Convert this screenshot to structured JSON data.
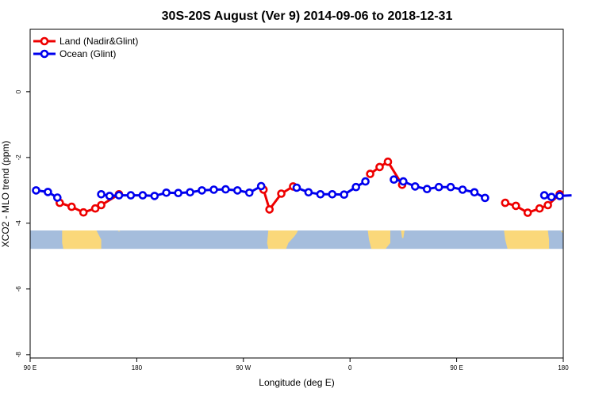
{
  "chart_data": {
    "type": "line",
    "title": "30S-20S August (Ver 9)   2014-09-06 to 2018-12-31",
    "xlabel": "Longitude (deg E)",
    "ylabel": "XCO2 - MLO trend (ppm)",
    "xlim": [
      90,
      540
    ],
    "ylim": [
      -8.1,
      1.9
    ],
    "x_ticks": [
      {
        "value": 90,
        "label": "90 E"
      },
      {
        "value": 180,
        "label": "180"
      },
      {
        "value": 270,
        "label": "90 W"
      },
      {
        "value": 360,
        "label": "0"
      },
      {
        "value": 450,
        "label": "90 E"
      },
      {
        "value": 540,
        "label": "180"
      }
    ],
    "y_ticks": [
      {
        "value": 0,
        "label": "0"
      },
      {
        "value": -2,
        "label": "-2"
      },
      {
        "value": -4,
        "label": "-4"
      },
      {
        "value": -6,
        "label": "-6"
      },
      {
        "value": -8,
        "label": "-8"
      }
    ],
    "legend_position": "top-left",
    "colors": {
      "land": "#ee0000",
      "ocean": "#0000ee",
      "map_ocean": "#a5bddc",
      "map_land": "#fad87a"
    },
    "series": [
      {
        "name": "Land (Nadir&Glint)",
        "color": "#ee0000",
        "segments": [
          [
            [
              115,
              -3.38
            ],
            [
              125,
              -3.5
            ],
            [
              135,
              -3.67
            ],
            [
              145,
              -3.55
            ],
            [
              150,
              -3.45
            ],
            [
              165,
              -3.12
            ]
          ],
          [
            [
              287,
              -2.98
            ],
            [
              292,
              -3.58
            ],
            [
              302,
              -3.1
            ],
            [
              312,
              -2.88
            ]
          ],
          [
            [
              377,
              -2.5
            ],
            [
              385,
              -2.29
            ],
            [
              392,
              -2.13
            ],
            [
              404,
              -2.83
            ]
          ],
          [
            [
              491,
              -3.38
            ],
            [
              500,
              -3.47
            ],
            [
              510,
              -3.68
            ],
            [
              520,
              -3.55
            ],
            [
              527,
              -3.45
            ],
            [
              537,
              -3.12
            ]
          ]
        ]
      },
      {
        "name": "Ocean (Glint)",
        "color": "#0000ee",
        "segments": [
          [
            [
              95,
              -3.0
            ],
            [
              105,
              -3.05
            ],
            [
              113,
              -3.22
            ]
          ],
          [
            [
              150,
              -3.12
            ],
            [
              157,
              -3.17
            ],
            [
              165,
              -3.15
            ],
            [
              175,
              -3.15
            ],
            [
              185,
              -3.15
            ],
            [
              195,
              -3.17
            ],
            [
              205,
              -3.07
            ],
            [
              215,
              -3.08
            ],
            [
              225,
              -3.06
            ],
            [
              235,
              -3.0
            ],
            [
              245,
              -2.98
            ],
            [
              255,
              -2.97
            ],
            [
              265,
              -3.0
            ],
            [
              275,
              -3.07
            ],
            [
              285,
              -2.87
            ]
          ],
          [
            [
              315,
              -2.92
            ],
            [
              325,
              -3.06
            ],
            [
              335,
              -3.12
            ],
            [
              345,
              -3.12
            ],
            [
              355,
              -3.13
            ],
            [
              365,
              -2.9
            ],
            [
              373,
              -2.73
            ]
          ],
          [
            [
              397,
              -2.67
            ],
            [
              405,
              -2.73
            ],
            [
              415,
              -2.88
            ],
            [
              425,
              -2.96
            ],
            [
              435,
              -2.9
            ],
            [
              445,
              -2.9
            ],
            [
              455,
              -2.98
            ],
            [
              465,
              -3.06
            ],
            [
              474,
              -3.23
            ]
          ],
          [
            [
              524,
              -3.15
            ],
            [
              530,
              -3.2
            ],
            [
              537,
              -3.17
            ],
            [
              547,
              -3.15
            ]
          ]
        ]
      }
    ],
    "map_strip": {
      "y_top": -4.22,
      "y_bottom": -4.78,
      "land_regions": [
        [
          [
            117,
            -4.22
          ],
          [
            146,
            -4.22
          ],
          [
            150,
            -4.5
          ],
          [
            150,
            -4.78
          ],
          [
            118,
            -4.78
          ],
          [
            117,
            -4.6
          ]
        ],
        [
          [
            164,
            -4.25
          ],
          [
            165,
            -4.22
          ],
          [
            166,
            -4.25
          ]
        ],
        [
          [
            291,
            -4.22
          ],
          [
            316,
            -4.22
          ],
          [
            315,
            -4.3
          ],
          [
            313,
            -4.4
          ],
          [
            308,
            -4.6
          ],
          [
            306,
            -4.78
          ],
          [
            291,
            -4.78
          ],
          [
            290,
            -4.6
          ]
        ],
        [
          [
            375,
            -4.22
          ],
          [
            394,
            -4.22
          ],
          [
            394,
            -4.6
          ],
          [
            390,
            -4.78
          ],
          [
            378,
            -4.78
          ],
          [
            376,
            -4.5
          ]
        ],
        [
          [
            403,
            -4.22
          ],
          [
            406,
            -4.22
          ],
          [
            405,
            -4.45
          ],
          [
            404,
            -4.45
          ]
        ],
        [
          [
            490,
            -4.22
          ],
          [
            527,
            -4.22
          ],
          [
            528,
            -4.5
          ],
          [
            528,
            -4.78
          ],
          [
            493,
            -4.78
          ],
          [
            491,
            -4.5
          ]
        ],
        [
          [
            538,
            -4.25
          ],
          [
            539,
            -4.22
          ],
          [
            540,
            -4.3
          ]
        ]
      ]
    }
  }
}
